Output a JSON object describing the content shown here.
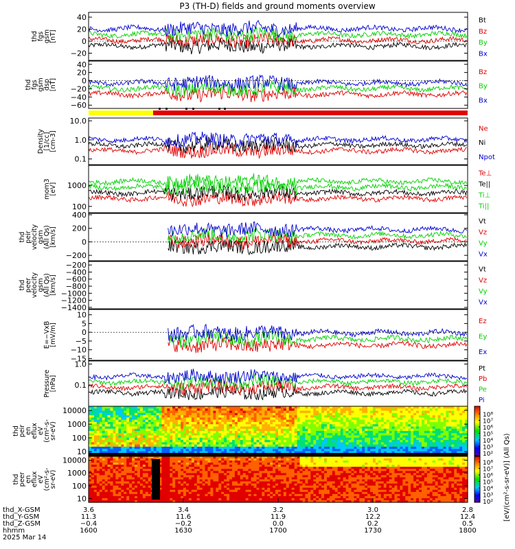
{
  "title": "P3 (TH-D) fields and ground moments overview",
  "colors": {
    "black": "#000000",
    "red": "#e00000",
    "green": "#00d000",
    "blue": "#0000d0",
    "yellow": "#ffff00"
  },
  "chart_data": [
    {
      "type": "line",
      "ylabel_lines": [
        "thd",
        "fgs",
        "gsm",
        "[nT]"
      ],
      "yticks": [
        {
          "v": 40,
          "t": "40"
        },
        {
          "v": 20,
          "t": "20"
        },
        {
          "v": 0,
          "t": "0"
        },
        {
          "v": -20,
          "t": "−20"
        }
      ],
      "ylim": [
        -32,
        48
      ],
      "log": false,
      "series": [
        {
          "name": "Bt",
          "color": "#000000"
        },
        {
          "name": "Bz",
          "color": "#e00000"
        },
        {
          "name": "By",
          "color": "#00d000"
        },
        {
          "name": "Bx",
          "color": "#0000d0"
        }
      ]
    },
    {
      "type": "line",
      "ylabel_lines": [
        "thd",
        "fgs",
        "gsm",
        "dsp",
        "[nT]"
      ],
      "yticks": [
        {
          "v": 40,
          "t": "40"
        },
        {
          "v": 20,
          "t": "20"
        },
        {
          "v": 0,
          "t": "0"
        },
        {
          "v": -20,
          "t": "−20"
        },
        {
          "v": -40,
          "t": "−40"
        },
        {
          "v": -60,
          "t": "−60"
        }
      ],
      "ylim": [
        -68,
        48
      ],
      "log": false,
      "series": [
        {
          "name": "Bz",
          "color": "#e00000"
        },
        {
          "name": "By",
          "color": "#00d000"
        },
        {
          "name": "Bx",
          "color": "#0000d0"
        }
      ]
    },
    {
      "type": "line",
      "ylabel_lines": [
        "Density",
        "[1/cc]",
        "[cm-3]"
      ],
      "yticks": [
        {
          "v": 10,
          "t": "10.0"
        },
        {
          "v": 1,
          "t": "1.0"
        },
        {
          "v": 0.1,
          "t": "0.1"
        }
      ],
      "ylim": [
        0.05,
        14
      ],
      "log": true,
      "series": [
        {
          "name": "Ne",
          "color": "#e00000"
        },
        {
          "name": "Ni",
          "color": "#000000"
        },
        {
          "name": "Npot",
          "color": "#0000d0"
        }
      ]
    },
    {
      "type": "line",
      "ylabel_lines": [
        "mom3",
        "[eV]"
      ],
      "yticks": [
        {
          "v": 1000,
          "t": "1000"
        },
        {
          "v": 100,
          "t": "100"
        }
      ],
      "ylim": [
        50,
        9000
      ],
      "log": true,
      "series": [
        {
          "name": "Te⊥",
          "color": "#e00000"
        },
        {
          "name": "Te||",
          "color": "#000000"
        },
        {
          "name": "Ti⊥",
          "color": "#00d000"
        },
        {
          "name": "Ti||",
          "color": "#00d000"
        }
      ]
    },
    {
      "type": "line",
      "ylabel_lines": [
        "thd",
        "peir",
        "velocity",
        "gsm",
        "(All Qs)",
        "[km/s]"
      ],
      "yticks": [
        {
          "v": 400,
          "t": "400"
        },
        {
          "v": 200,
          "t": "200"
        },
        {
          "v": 0,
          "t": "0"
        },
        {
          "v": -200,
          "t": "−200"
        }
      ],
      "ylim": [
        -280,
        420
      ],
      "log": false,
      "series": [
        {
          "name": "Vt",
          "color": "#000000"
        },
        {
          "name": "Vz",
          "color": "#e00000"
        },
        {
          "name": "Vy",
          "color": "#00d000"
        },
        {
          "name": "Vx",
          "color": "#0000d0"
        }
      ]
    },
    {
      "type": "line",
      "ylabel_lines": [
        "thd",
        "peer",
        "velocity",
        "gsm",
        "(All Qs)",
        "[km/s]"
      ],
      "yticks": [
        {
          "v": -200,
          "t": "−200"
        },
        {
          "v": -400,
          "t": "−400"
        },
        {
          "v": -600,
          "t": "−600"
        },
        {
          "v": -800,
          "t": "−800"
        },
        {
          "v": -1000,
          "t": "−1000"
        },
        {
          "v": -1200,
          "t": "−1200"
        },
        {
          "v": -1400,
          "t": "−1400"
        }
      ],
      "ylim": [
        -1440,
        -100
      ],
      "log": false,
      "series": [
        {
          "name": "Vt",
          "color": "#000000"
        },
        {
          "name": "Vz",
          "color": "#e00000"
        },
        {
          "name": "Vy",
          "color": "#00d000"
        },
        {
          "name": "Vx",
          "color": "#0000d0"
        }
      ]
    },
    {
      "type": "line",
      "ylabel_lines": [
        "E=−VxB",
        "[mV/m]"
      ],
      "yticks": [
        {
          "v": 10,
          "t": "10"
        },
        {
          "v": 5,
          "t": "5"
        },
        {
          "v": 0,
          "t": "0"
        },
        {
          "v": -5,
          "t": "−5"
        },
        {
          "v": -10,
          "t": "−10"
        },
        {
          "v": -15,
          "t": "−15"
        }
      ],
      "ylim": [
        -16,
        13
      ],
      "log": false,
      "series": [
        {
          "name": "Ez",
          "color": "#e00000"
        },
        {
          "name": "Ey",
          "color": "#00d000"
        },
        {
          "name": "Ex",
          "color": "#0000d0"
        }
      ]
    },
    {
      "type": "line",
      "ylabel_lines": [
        "Pressure",
        "[nPa]"
      ],
      "yticks": [
        {
          "v": 1,
          "t": "1.0"
        },
        {
          "v": 0.1,
          "t": "0.1"
        }
      ],
      "ylim": [
        0.01,
        1.4
      ],
      "log": true,
      "series": [
        {
          "name": "Pt",
          "color": "#000000"
        },
        {
          "name": "Pb",
          "color": "#e00000"
        },
        {
          "name": "Pe",
          "color": "#00d000"
        },
        {
          "name": "Pi",
          "color": "#0000d0"
        }
      ]
    },
    {
      "type": "heatmap",
      "ylabel_lines": [
        "thd",
        "peir",
        "en",
        "eflux",
        "eV",
        "(cm²-s-",
        "sr-eV)"
      ],
      "yticks": [
        {
          "v": 10000,
          "t": "10000"
        },
        {
          "v": 1000,
          "t": "1000"
        },
        {
          "v": 100,
          "t": "100"
        },
        {
          "v": 10,
          "t": "10"
        }
      ],
      "ylim": [
        5,
        20000
      ],
      "log": true
    },
    {
      "type": "heatmap",
      "ylabel_lines": [
        "thd",
        "peer",
        "en",
        "eflux",
        "eV",
        "(cm²-s-",
        "sr-eV)"
      ],
      "yticks": [
        {
          "v": 10000,
          "t": "10000"
        },
        {
          "v": 1000,
          "t": "1000"
        },
        {
          "v": 100,
          "t": "100"
        },
        {
          "v": 10,
          "t": "10"
        }
      ],
      "ylim": [
        5,
        20000
      ],
      "log": true
    }
  ],
  "mode_bar": {
    "colors": [
      "#ffff00",
      "#e00000"
    ]
  },
  "colorbar": {
    "ticks": [
      "10⁸",
      "10⁷",
      "10⁶",
      "10⁵",
      "10⁴",
      "10³",
      "10²"
    ],
    "ticks_lower": [
      "10⁸",
      "10⁷",
      "10⁶",
      "10⁵",
      "10⁴",
      "10³",
      "10²"
    ],
    "label": "[eV/(cm²-s-sr-eV)] (All Qs)"
  },
  "xaxis": {
    "row_labels": [
      "thd_X-GSM",
      "thd_Y-GSM",
      "thd_Z-GSM",
      "hhmm",
      "2025 Mar 14"
    ],
    "columns": [
      [
        "3.6",
        "11.3",
        "−0.4",
        "1600"
      ],
      [
        "3.4",
        "11.6",
        "−0.2",
        "1630"
      ],
      [
        "3.2",
        "11.9",
        "0.0",
        "1700"
      ],
      [
        "3.0",
        "12.2",
        "0.2",
        "1730"
      ],
      [
        "2.8",
        "12.4",
        "0.5",
        "1800"
      ]
    ]
  }
}
